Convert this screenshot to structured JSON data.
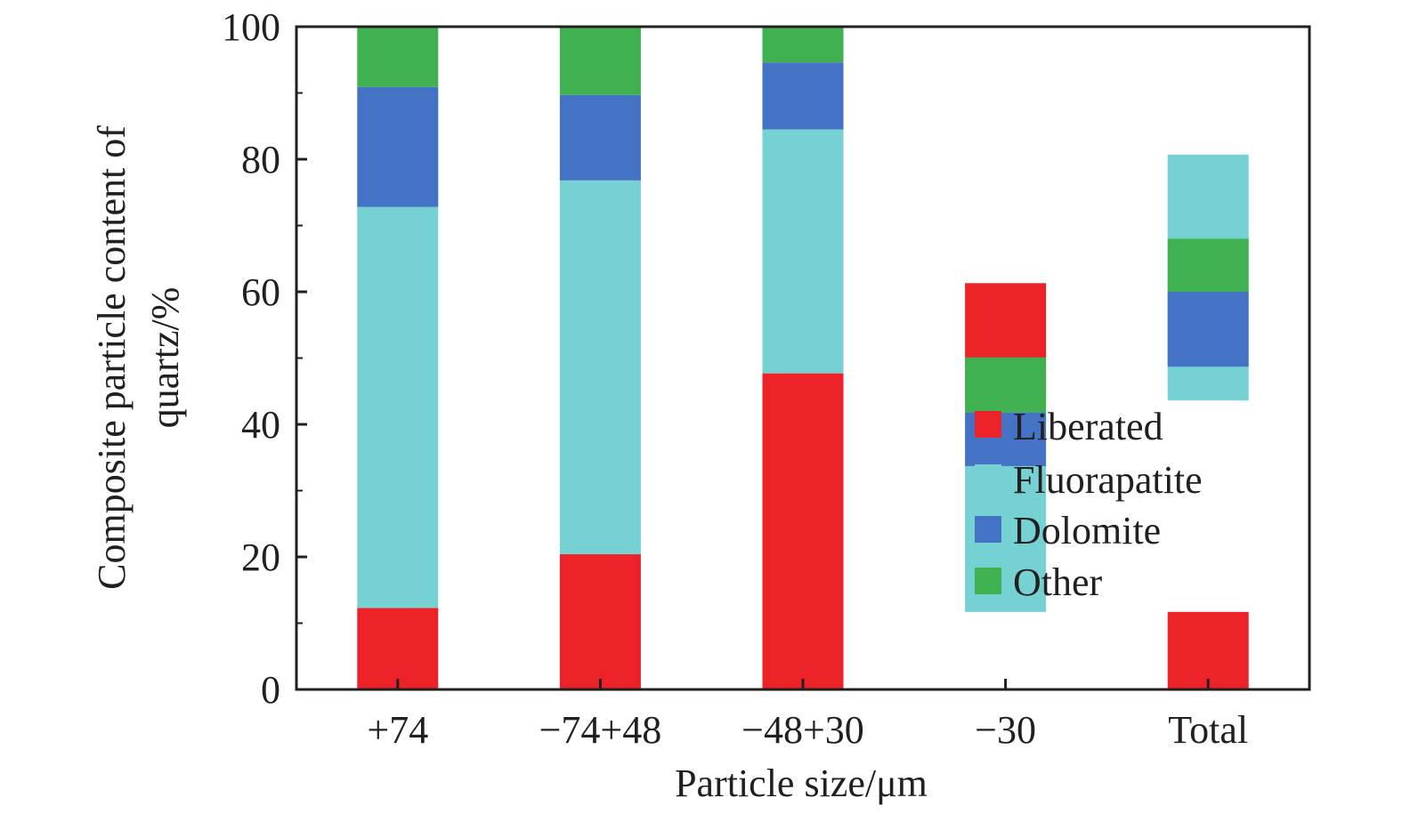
{
  "chart_data": {
    "type": "bar",
    "stacked": true,
    "title": "",
    "xlabel": "Particle size/μm",
    "ylabel_lines": [
      "Composite particle content of",
      "quartz/%"
    ],
    "categories": [
      "+74",
      "−74+48",
      "−48+30",
      "−30",
      "Total"
    ],
    "ylim": [
      0,
      100
    ],
    "yticks": [
      0,
      20,
      40,
      60,
      80,
      100
    ],
    "grid": false,
    "legend_position": "right, middle",
    "series": [
      {
        "name": "Liberated",
        "color": "#ed2229",
        "values": [
          12.3,
          20.4,
          47.7,
          11.7,
          11.7
        ]
      },
      {
        "name": "Fluorapatite",
        "color": "#76d1d3",
        "values": [
          60.5,
          56.4,
          36.8,
          22.0,
          37.0
        ]
      },
      {
        "name": "Dolomite",
        "color": "#4472c4",
        "values": [
          18.1,
          12.9,
          10.1,
          8.1,
          11.3
        ]
      },
      {
        "name": "Other",
        "color": "#3fb151",
        "values": [
          9.1,
          10.3,
          5.4,
          8.3,
          8.0
        ]
      }
    ],
    "floating_segments": [
      {
        "category": "−30",
        "series": "Liberated",
        "from": 43.6,
        "to": 61.3
      },
      {
        "category": "Total",
        "series": "Fluorapatite",
        "from": 43.6,
        "to": 80.7
      }
    ]
  }
}
